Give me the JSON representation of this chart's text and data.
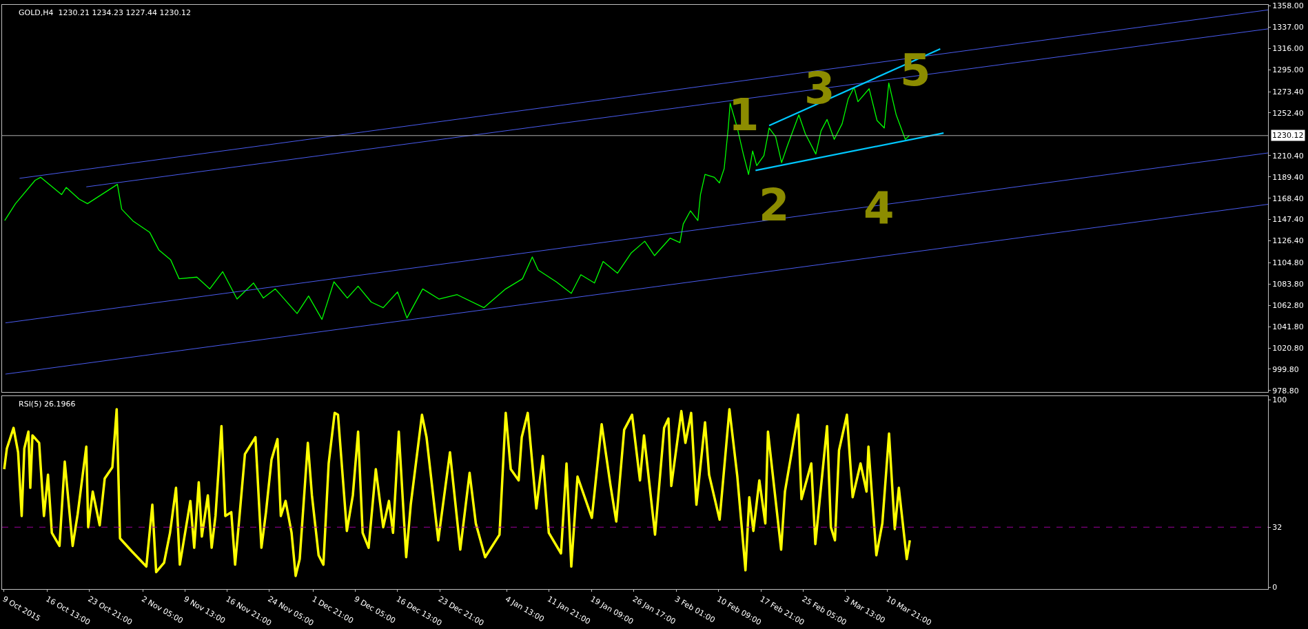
{
  "chart_data": [
    {
      "type": "line",
      "title": "GOLD,H4  1230.21 1234.23 1227.44 1230.12",
      "tick_labels": "y",
      "xlim": [
        "2015-10-08T16:00",
        "2016-05-16T03:00"
      ],
      "ylim": [
        977.5,
        1359
      ],
      "yticks": [
        {
          "value": 978.8,
          "label": "978.80"
        },
        {
          "value": 999.8,
          "label": "999.80"
        },
        {
          "value": 1020.8,
          "label": "1020.80"
        },
        {
          "value": 1041.8,
          "label": "1041.80"
        },
        {
          "value": 1062.8,
          "label": "1062.80"
        },
        {
          "value": 1083.8,
          "label": "1083.80"
        },
        {
          "value": 1104.8,
          "label": "1104.80"
        },
        {
          "value": 1126.4,
          "label": "1126.40"
        },
        {
          "value": 1147.4,
          "label": "1147.40"
        },
        {
          "value": 1168.4,
          "label": "1168.40"
        },
        {
          "value": 1189.4,
          "label": "1189.40"
        },
        {
          "value": 1210.4,
          "label": "1210.40"
        },
        {
          "value": 1252.4,
          "label": "1252.40"
        },
        {
          "value": 1273.4,
          "label": "1273.40"
        },
        {
          "value": 1295.0,
          "label": "1295.00"
        },
        {
          "value": 1316.0,
          "label": "1316.00"
        },
        {
          "value": 1337.0,
          "label": "1337.00"
        },
        {
          "value": 1358.0,
          "label": "1358.00"
        }
      ],
      "ref_lines": [
        {
          "axis": "y",
          "value": 1230.12,
          "label": "1230.12",
          "color": "#b0b0b0"
        }
      ],
      "annotations": [
        "1",
        "2",
        "3",
        "4",
        "5"
      ],
      "series": [
        {
          "color": "#00ff00",
          "x": [
            "2015-10-09T03:00",
            "2015-10-11T00:00",
            "2015-10-14T10:00",
            "2015-10-15T09:00",
            "2015-10-19T01:00",
            "2015-10-19T20:00",
            "2015-10-22T02:00",
            "2015-10-23T13:00",
            "2015-10-28T18:00",
            "2015-10-29T12:00",
            "2015-10-31T11:00",
            "2015-11-03T09:00",
            "2015-11-04T23:00",
            "2015-11-07T01:00",
            "2015-11-08T12:00",
            "2015-11-11T14:00",
            "2015-11-13T20:00",
            "2015-11-16T02:00",
            "2015-11-18T14:00",
            "2015-11-21T11:00",
            "2015-11-23T04:00",
            "2015-11-25T06:00",
            "2015-11-29T01:00",
            "2015-12-01T01:00",
            "2015-12-03T09:00",
            "2015-12-05T11:00",
            "2015-12-07T19:00",
            "2015-12-09T16:00",
            "2015-12-11T23:00",
            "2015-12-14T01:00",
            "2015-12-16T13:00",
            "2015-12-18T04:00",
            "2015-12-20T22:00",
            "2015-12-23T18:00",
            "2015-12-26T22:00",
            "2015-12-31T14:00",
            "2016-01-04T09:00",
            "2016-01-07T07:00",
            "2016-01-09T00:00",
            "2016-01-10T01:00",
            "2016-01-13T04:00",
            "2016-01-15T19:00",
            "2016-01-17T11:00",
            "2016-01-19T20:00",
            "2016-01-21T08:00",
            "2016-01-23T20:00",
            "2016-01-26T06:00",
            "2016-01-28T14:00",
            "2016-01-30T07:00",
            "2016-02-02T00:00",
            "2016-02-03T17:00",
            "2016-02-04T07:00",
            "2016-02-05T13:00",
            "2016-02-06T20:00",
            "2016-02-07T07:00",
            "2016-02-08T02:00",
            "2016-02-09T17:00",
            "2016-02-10T14:00",
            "2016-02-11T10:00",
            "2016-02-12T03:00",
            "2016-02-12T11:00",
            "2016-02-13T17:00",
            "2016-02-14T18:00",
            "2016-02-15T16:00",
            "2016-02-16T09:00",
            "2016-02-17T02:00",
            "2016-02-18T08:00",
            "2016-02-19T06:00",
            "2016-02-20T09:00",
            "2016-02-21T10:00",
            "2016-02-22T11:00",
            "2016-02-24T10:00",
            "2016-02-25T13:00",
            "2016-02-27T09:00",
            "2016-02-28T07:00",
            "2016-02-29T08:00",
            "2016-03-01T14:00",
            "2016-03-02T23:00",
            "2016-03-04T00:00",
            "2016-03-05T01:00",
            "2016-03-05T17:00",
            "2016-03-07T16:00",
            "2016-03-09T01:00",
            "2016-03-10T07:00",
            "2016-03-11T02:00",
            "2016-03-12T09:00",
            "2016-03-13T23:00",
            "2016-03-14T16:00"
          ],
          "values": [
            1146.4,
            1163,
            1186,
            1189,
            1172,
            1179,
            1167.5,
            1163,
            1182,
            1157.6,
            1146,
            1134.8,
            1117.5,
            1107.5,
            1089,
            1090.6,
            1079,
            1096,
            1069,
            1084.8,
            1070,
            1079,
            1054.7,
            1072,
            1048.9,
            1086,
            1070,
            1081.7,
            1066,
            1060.5,
            1076,
            1050.3,
            1079,
            1069,
            1073.3,
            1060.5,
            1079,
            1089,
            1110.5,
            1097.6,
            1086,
            1074.6,
            1093,
            1084.8,
            1106,
            1094.5,
            1114.6,
            1126,
            1111.8,
            1129,
            1124.6,
            1143,
            1156,
            1146.4,
            1172,
            1191.8,
            1189,
            1183.5,
            1197.6,
            1237.6,
            1262,
            1237.6,
            1211.9,
            1191.8,
            1214.9,
            1200.5,
            1210.4,
            1237.6,
            1229,
            1203.4,
            1220.7,
            1250.5,
            1232,
            1211.9,
            1234.8,
            1246,
            1226.4,
            1241.8,
            1266.1,
            1277.7,
            1263.5,
            1276.3,
            1244.9,
            1237.6,
            1282,
            1250.5,
            1226.4,
            1230.1
          ]
        },
        {
          "type": "line",
          "color": "#4a5cf0",
          "x": [
            "2015-10-11T17:00",
            "2016-05-16T03:00"
          ],
          "values": [
            1188,
            1354
          ]
        },
        {
          "type": "line",
          "color": "#4a5cf0",
          "x": [
            "2015-10-23T08:00",
            "2016-05-16T03:00"
          ],
          "values": [
            1179.6,
            1335.3
          ]
        },
        {
          "type": "line",
          "color": "#4a5cf0",
          "x": [
            "2015-10-09T06:00",
            "2016-05-16T03:00"
          ],
          "values": [
            1045.5,
            1213
          ]
        },
        {
          "type": "line",
          "color": "#4a5cf0",
          "x": [
            "2015-10-09T06:00",
            "2016-05-16T03:00"
          ],
          "values": [
            995,
            1162.4
          ]
        },
        {
          "type": "line",
          "color": "#00c8ff",
          "x": [
            "2016-02-19T06:00",
            "2016-03-20T01:00"
          ],
          "values": [
            1240,
            1315.5
          ]
        },
        {
          "type": "line",
          "color": "#00c8ff",
          "x": [
            "2016-02-16T21:00",
            "2016-03-20T15:00"
          ],
          "values": [
            1195.8,
            1232.6
          ]
        }
      ]
    },
    {
      "type": "line",
      "title": "RSI(5) 26.1966",
      "xlim": [
        "2015-10-08T16:00",
        "2016-05-16T03:00"
      ],
      "xticks": [
        {
          "value": "2015-10-09T00:00",
          "label": "9 Oct 2015"
        },
        {
          "value": "2015-10-16T13:00",
          "label": "16 Oct 13:00"
        },
        {
          "value": "2015-10-23T21:00",
          "label": "23 Oct 21:00"
        },
        {
          "value": "2015-11-02T05:00",
          "label": "2 Nov 05:00"
        },
        {
          "value": "2015-11-09T13:00",
          "label": "9 Nov 13:00"
        },
        {
          "value": "2015-11-16T21:00",
          "label": "16 Nov 21:00"
        },
        {
          "value": "2015-11-24T05:00",
          "label": "24 Nov 05:00"
        },
        {
          "value": "2015-12-01T21:00",
          "label": "1 Dec 21:00"
        },
        {
          "value": "2015-12-09T05:00",
          "label": "9 Dec 05:00"
        },
        {
          "value": "2015-12-16T13:00",
          "label": "16 Dec 13:00"
        },
        {
          "value": "2015-12-23T21:00",
          "label": "23 Dec 21:00"
        },
        {
          "value": "2016-01-04T13:00",
          "label": "4 Jan 13:00"
        },
        {
          "value": "2016-01-11T21:00",
          "label": "11 Jan 21:00"
        },
        {
          "value": "2016-01-19T09:00",
          "label": "19 Jan 09:00"
        },
        {
          "value": "2016-01-26T17:00",
          "label": "26 Jan 17:00"
        },
        {
          "value": "2016-02-03T01:00",
          "label": "3 Feb 01:00"
        },
        {
          "value": "2016-02-10T09:00",
          "label": "10 Feb 09:00"
        },
        {
          "value": "2016-02-17T21:00",
          "label": "17 Feb 21:00"
        },
        {
          "value": "2016-02-25T05:00",
          "label": "25 Feb 05:00"
        },
        {
          "value": "2016-03-03T13:00",
          "label": "3 Mar 13:00"
        },
        {
          "value": "2016-03-10T21:00",
          "label": "10 Mar 21:00"
        }
      ],
      "ylim": [
        -1,
        102
      ],
      "yticks": [
        0,
        32,
        100
      ],
      "ref_lines": [
        {
          "axis": "y",
          "value": 32,
          "color": "#a000a0",
          "line_style": "dashed"
        }
      ],
      "series": [
        {
          "color": "#ffff00",
          "x": [
            "2015-10-09T01:00",
            "2015-10-09T12:00",
            "2015-10-10T16:00",
            "2015-10-11T11:00",
            "2015-10-12T02:00",
            "2015-10-12T13:00",
            "2015-10-13T06:00",
            "2015-10-13T14:00",
            "2015-10-13T23:00",
            "2015-10-15T03:00",
            "2015-10-15T23:00",
            "2015-10-16T16:00",
            "2015-10-17T08:00",
            "2015-10-18T16:00",
            "2015-10-19T14:00",
            "2015-10-20T23:00",
            "2015-10-21T20:00",
            "2015-10-23T08:00",
            "2015-10-23T16:00",
            "2015-10-24T11:00",
            "2015-10-25T16:00",
            "2015-10-26T13:00",
            "2015-10-27T21:00",
            "2015-10-28T15:00",
            "2015-10-29T05:00",
            "2015-10-31T07:00",
            "2015-11-02T19:00",
            "2015-11-03T20:00",
            "2015-11-04T12:00",
            "2015-11-05T21:00",
            "2015-11-06T22:00",
            "2015-11-07T23:00",
            "2015-11-08T15:00",
            "2015-11-10T11:00",
            "2015-11-11T03:00",
            "2015-11-11T22:00",
            "2015-11-12T11:00",
            "2015-11-13T12:00",
            "2015-11-14T04:00",
            "2015-11-14T20:00",
            "2015-11-15T21:00",
            "2015-11-16T13:00",
            "2015-11-17T14:00",
            "2015-11-18T06:00",
            "2015-11-18T23:00",
            "2015-11-19T23:00",
            "2015-11-21T19:00",
            "2015-11-22T20:00",
            "2015-11-23T15:00",
            "2015-11-24T14:00",
            "2015-11-25T15:00",
            "2015-11-26T05:00",
            "2015-11-27T01:00",
            "2015-11-28T02:00",
            "2015-11-28T19:00",
            "2015-11-29T12:00",
            "2015-11-30T22:00",
            "2015-12-01T15:00",
            "2015-12-02T19:00",
            "2015-12-03T15:00",
            "2015-12-04T13:00",
            "2015-12-05T14:00",
            "2015-12-06T04:00",
            "2015-12-07T17:00",
            "2015-12-08T18:00",
            "2015-12-09T16:00",
            "2015-12-10T11:00",
            "2015-12-11T12:00",
            "2015-12-12T18:00",
            "2015-12-14T01:00",
            "2015-12-15T01:00",
            "2015-12-15T18:00",
            "2015-12-16T18:00",
            "2015-12-18T01:00",
            "2015-12-18T20:00",
            "2015-12-20T19:00",
            "2015-12-21T14:00",
            "2015-12-23T15:00",
            "2015-12-25T16:00",
            "2015-12-27T11:00",
            "2015-12-29T02:00",
            "2015-12-30T04:00",
            "2015-12-31T19:00",
            "2016-01-03T07:00",
            "2016-01-04T09:00",
            "2016-01-05T06:00",
            "2016-01-06T15:00",
            "2016-01-07T04:00",
            "2016-01-08T05:00",
            "2016-01-09T17:00",
            "2016-01-10T20:00",
            "2016-01-11T21:00",
            "2016-01-14T00:00",
            "2016-01-14T23:00",
            "2016-01-15T19:00",
            "2016-01-16T21:00",
            "2016-01-19T09:00",
            "2016-01-21T02:00",
            "2016-01-22T14:00",
            "2016-01-23T15:00",
            "2016-01-25T00:00",
            "2016-01-26T09:00",
            "2016-01-27T18:00",
            "2016-01-28T11:00",
            "2016-01-30T09:00",
            "2016-01-31T23:00",
            "2016-02-01T17:00",
            "2016-02-02T05:00",
            "2016-02-03T23:00",
            "2016-02-04T16:00",
            "2016-02-05T16:00",
            "2016-02-06T14:00",
            "2016-02-08T02:00",
            "2016-02-08T19:00",
            "2016-02-10T15:00",
            "2016-02-12T08:00",
            "2016-02-13T17:00",
            "2016-02-15T03:00",
            "2016-02-15T19:00",
            "2016-02-16T12:00",
            "2016-02-17T13:00",
            "2016-02-18T14:00",
            "2016-02-19T01:00",
            "2016-02-21T08:00",
            "2016-02-22T00:00",
            "2016-02-24T07:00",
            "2016-02-24T21:00",
            "2016-02-26T14:00",
            "2016-02-27T07:00",
            "2016-02-29T08:00",
            "2016-03-01T00:00",
            "2016-03-01T17:00",
            "2016-03-02T10:00",
            "2016-03-03T19:00",
            "2016-03-04T19:00",
            "2016-03-06T04:00",
            "2016-03-07T05:00",
            "2016-03-07T13:00",
            "2016-03-08T22:00",
            "2016-03-09T23:00",
            "2016-03-11T03:00",
            "2016-03-12T03:00",
            "2016-03-12T20:00",
            "2016-03-14T05:00",
            "2016-03-14T18:00"
          ],
          "values": [
            63,
            74,
            85,
            72,
            38,
            74,
            83,
            53,
            81,
            77,
            38,
            60,
            29,
            22,
            67,
            22,
            39,
            75,
            32,
            51,
            33,
            58,
            64,
            95,
            26,
            19,
            11,
            44,
            8,
            13,
            29,
            53,
            12,
            46,
            21,
            56,
            27,
            49,
            21,
            38,
            86,
            38,
            40,
            12,
            36,
            71,
            80,
            21,
            40,
            68,
            79,
            38,
            46,
            29,
            6,
            15,
            77,
            49,
            17,
            12,
            66,
            93,
            92,
            30,
            49,
            83,
            29,
            21,
            63,
            32,
            46,
            29,
            83,
            16,
            44,
            92,
            80,
            25,
            72,
            20,
            61,
            34,
            16,
            28,
            93,
            63,
            57,
            80,
            93,
            42,
            70,
            29,
            18,
            66,
            11,
            59,
            37,
            87,
            55,
            35,
            84,
            92,
            57,
            81,
            28,
            85,
            90,
            54,
            94,
            77,
            93,
            44,
            88,
            60,
            36,
            95,
            59,
            9,
            48,
            30,
            57,
            34,
            83,
            20,
            51,
            92,
            47,
            66,
            23,
            86,
            32,
            25,
            73,
            92,
            48,
            66,
            51,
            75,
            17,
            34,
            82,
            31,
            53,
            15,
            25
          ]
        }
      ]
    }
  ]
}
